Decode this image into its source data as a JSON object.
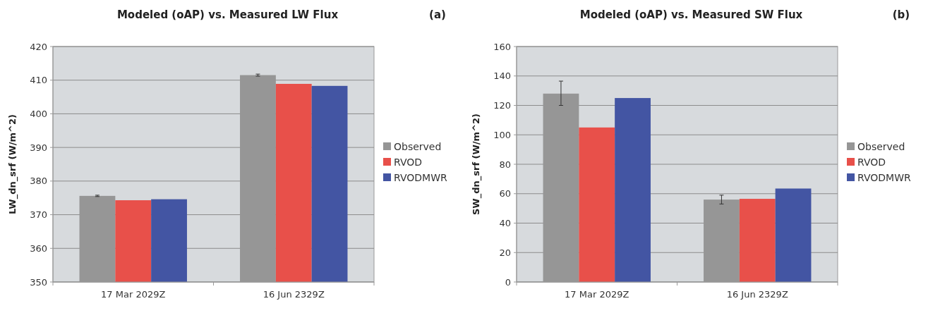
{
  "chart_data": [
    {
      "type": "bar",
      "title": "Modeled (oAP) vs. Measured LW Flux",
      "annotations": [
        "(a)"
      ],
      "ylabel": "LW_dn_srf (W/m^2)",
      "categories": [
        "17 Mar 2029Z",
        "16 Jun 2329Z"
      ],
      "series": [
        {
          "name": "Observed",
          "color": "#969696",
          "values": [
            375.6,
            411.5
          ],
          "errors": [
            0.2,
            0.3
          ]
        },
        {
          "name": "RVOD",
          "color": "#e8504a",
          "values": [
            374.3,
            408.9
          ]
        },
        {
          "name": "RVODMWR",
          "color": "#4355a3",
          "values": [
            374.6,
            408.3
          ]
        }
      ],
      "ylim": [
        350,
        420
      ],
      "yticks": [
        350,
        360,
        370,
        380,
        390,
        400,
        410,
        420
      ],
      "grid": "y",
      "legend": "right"
    },
    {
      "type": "bar",
      "title": "Modeled (oAP) vs. Measured SW Flux",
      "annotations": [
        "(b)"
      ],
      "ylabel": "SW_dn_srf (W/m^2)",
      "categories": [
        "17 Mar 2029Z",
        "16 Jun 2329Z"
      ],
      "series": [
        {
          "name": "Observed",
          "color": "#969696",
          "values": [
            128,
            56
          ],
          "errors": [
            [
              120,
              136.5
            ],
            [
              53,
              59
            ]
          ]
        },
        {
          "name": "RVOD",
          "color": "#e8504a",
          "values": [
            105,
            56.5
          ]
        },
        {
          "name": "RVODMWR",
          "color": "#4355a3",
          "values": [
            125,
            63.5
          ]
        }
      ],
      "ylim": [
        0,
        160
      ],
      "yticks": [
        0,
        20,
        40,
        60,
        80,
        100,
        120,
        140,
        160
      ],
      "grid": "y",
      "legend": "right"
    }
  ]
}
